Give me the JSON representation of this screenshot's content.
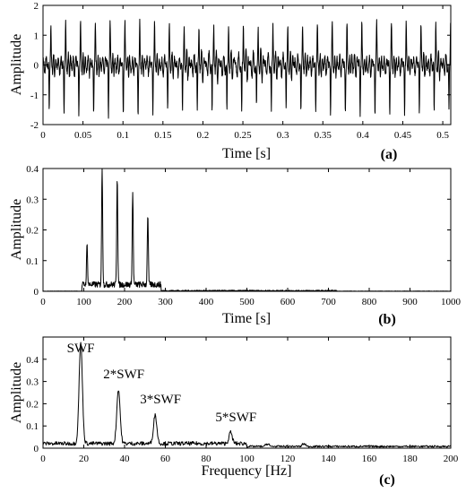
{
  "chart_data": [
    {
      "type": "line",
      "xlabel": "Time [s]",
      "ylabel": "Amplitude",
      "panel_label": "(a)",
      "xlim": [
        0,
        0.51
      ],
      "ylim": [
        -2,
        2
      ],
      "xticks": [
        0,
        0.05,
        0.1,
        0.15,
        0.2,
        0.25,
        0.3,
        0.35,
        0.4,
        0.45,
        0.5
      ],
      "xtick_labels": [
        "0",
        "0.05",
        "0.1",
        "0.15",
        "0.2",
        "0.25",
        "0.3",
        "0.35",
        "0.4",
        "0.45",
        "0.5"
      ],
      "yticks": [
        -2,
        -1,
        0,
        1,
        2
      ],
      "ytick_labels": [
        "-2",
        "-1",
        "0",
        "1",
        "2"
      ],
      "series": [
        {
          "fundamental_hz": 54,
          "amplitude_peak": 1.5,
          "amplitude_trough": -1.6
        }
      ]
    },
    {
      "type": "line",
      "xlabel": "Time [s]",
      "ylabel": "Amplitude",
      "panel_label": "(b)",
      "xlim": [
        0,
        1000
      ],
      "ylim": [
        0,
        0.4
      ],
      "xticks": [
        0,
        100,
        200,
        300,
        400,
        500,
        600,
        700,
        800,
        900,
        1000
      ],
      "xtick_labels": [
        "0",
        "100",
        "200",
        "300",
        "400",
        "500",
        "600",
        "700",
        "800",
        "900",
        "1000"
      ],
      "yticks": [
        0,
        0.1,
        0.2,
        0.3,
        0.4
      ],
      "ytick_labels": [
        "0",
        "0.1",
        "0.2",
        "0.3",
        "0.4"
      ],
      "series": [
        {
          "peaks": [
            {
              "x": 108,
              "y": 0.13
            },
            {
              "x": 145,
              "y": 0.385
            },
            {
              "x": 182,
              "y": 0.355
            },
            {
              "x": 220,
              "y": 0.3
            },
            {
              "x": 257,
              "y": 0.232
            }
          ]
        }
      ]
    },
    {
      "type": "line",
      "xlabel": "Frequency [Hz]",
      "ylabel": "Amplitude",
      "panel_label": "(c)",
      "xlim": [
        0,
        200
      ],
      "ylim": [
        0,
        0.5
      ],
      "xticks": [
        0,
        20,
        40,
        60,
        80,
        100,
        120,
        140,
        160,
        180,
        200
      ],
      "xtick_labels": [
        "0",
        "20",
        "40",
        "60",
        "80",
        "100",
        "120",
        "140",
        "160",
        "180",
        "200"
      ],
      "yticks": [
        0,
        0.1,
        0.2,
        0.3,
        0.4
      ],
      "ytick_labels": [
        "0",
        "0.1",
        "0.2",
        "0.3",
        "0.4"
      ],
      "annotations": [
        {
          "text": "SWF",
          "x": 18.5
        },
        {
          "text": "2*SWF",
          "x": 37
        },
        {
          "text": "3*SWF",
          "x": 55
        },
        {
          "text": "5*SWF",
          "x": 92
        }
      ],
      "series": [
        {
          "peaks": [
            {
              "x": 18.5,
              "y": 0.455
            },
            {
              "x": 37,
              "y": 0.245
            },
            {
              "x": 55,
              "y": 0.13
            },
            {
              "x": 92,
              "y": 0.05
            }
          ]
        }
      ]
    }
  ]
}
